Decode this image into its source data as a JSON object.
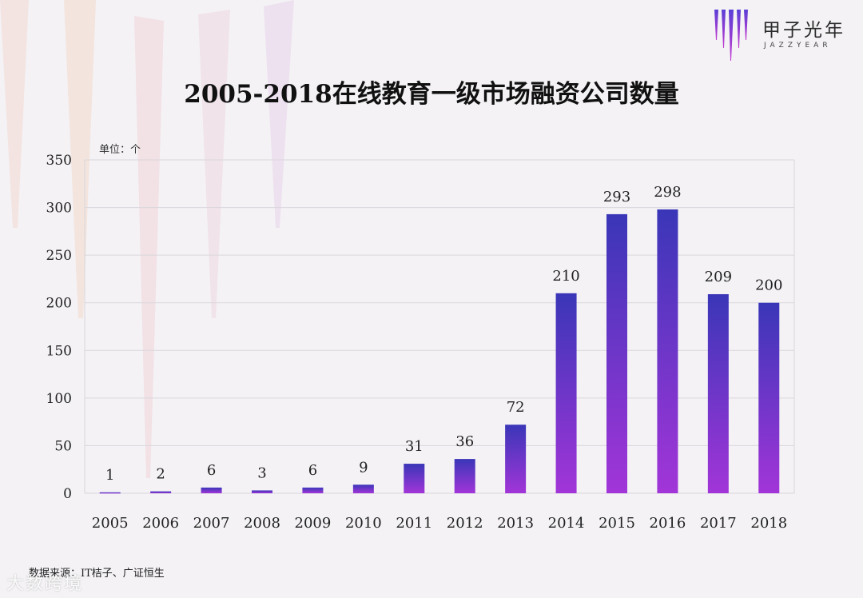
{
  "logo": {
    "name": "甲子光年",
    "subtitle": "JAZZYEAR"
  },
  "unit_label": "单位：个",
  "source": "数据来源：IT桔子、广证恒生",
  "watermark": "大数跨境",
  "colors": {
    "bar_top": "#3a36b8",
    "bar_bottom": "#a235d8",
    "grid": "#d9d7dc"
  },
  "chart_data": {
    "type": "bar",
    "title": "2005-2018在线教育一级市场融资公司数量",
    "xlabel": "",
    "ylabel": "单位：个",
    "categories": [
      "2005",
      "2006",
      "2007",
      "2008",
      "2009",
      "2010",
      "2011",
      "2012",
      "2013",
      "2014",
      "2015",
      "2016",
      "2017",
      "2018"
    ],
    "values": [
      1,
      2,
      6,
      3,
      6,
      9,
      31,
      36,
      72,
      210,
      293,
      298,
      209,
      200
    ],
    "ylim": [
      0,
      350
    ],
    "yticks": [
      0,
      50,
      100,
      150,
      200,
      250,
      300,
      350
    ],
    "grid": true,
    "data_labels": true
  }
}
